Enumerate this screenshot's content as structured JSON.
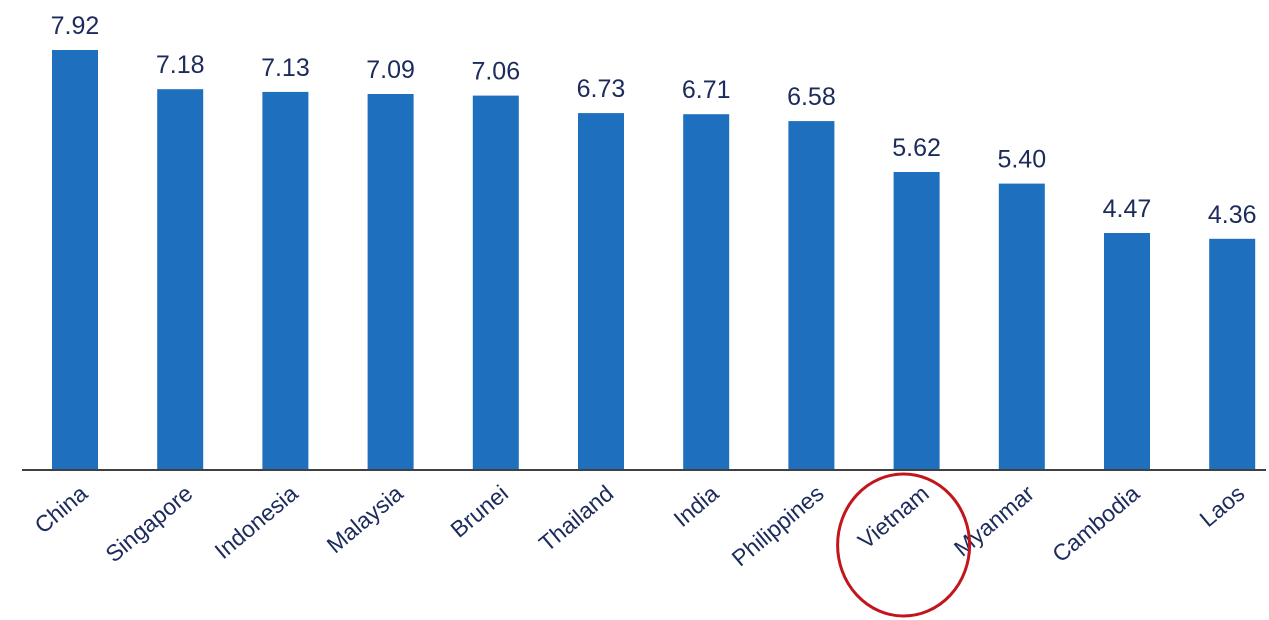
{
  "colors": {
    "bar": "#1f6fbf",
    "value_label": "#1c2a5c",
    "category_label": "#1c2a5c",
    "axis": "#404040",
    "highlight_circle": "#c0161c"
  },
  "chart_data": {
    "type": "bar",
    "categories": [
      "China",
      "Singapore",
      "Indonesia",
      "Malaysia",
      "Brunei",
      "Thailand",
      "India",
      "Philippines",
      "Vietnam",
      "Myanmar",
      "Cambodia",
      "Laos"
    ],
    "values": [
      7.92,
      7.18,
      7.13,
      7.09,
      7.06,
      6.73,
      6.71,
      6.58,
      5.62,
      5.4,
      4.47,
      4.36
    ],
    "value_labels": [
      "7.92",
      "7.18",
      "7.13",
      "7.09",
      "7.06",
      "6.73",
      "6.71",
      "6.58",
      "5.62",
      "5.40",
      "4.47",
      "4.36"
    ],
    "ylim": [
      0,
      8
    ],
    "grid": false,
    "legend": "none",
    "highlighted_category": "Vietnam"
  }
}
